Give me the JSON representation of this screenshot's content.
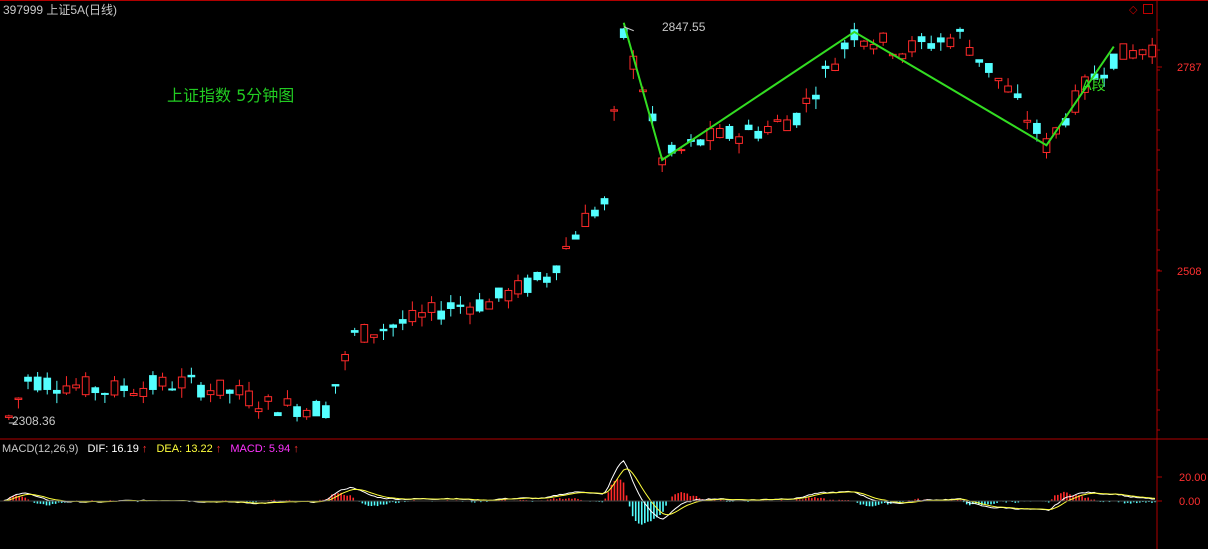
{
  "header": {
    "symbol_title": "397999 上证5A(日线)",
    "diamond_icon": "diamond-icon",
    "restore_icon": "restore-window-icon"
  },
  "annotation": {
    "chart_title": "上证指数 5分钟图",
    "high_label": "2847.55",
    "low_label": "2308.36",
    "segment_label": "A段"
  },
  "macd_legend": {
    "name": "MACD(12,26,9)",
    "dif": "DIF: 16.19",
    "dea": "DEA: 13.22",
    "macd": "MACD: 5.94",
    "arrow": "↑"
  },
  "colors": {
    "background": "#000000",
    "axis": "#b00000",
    "up_candle": "#ff2a2a",
    "down_candle": "#54ffff",
    "zigzag": "#33dd22",
    "dif_line": "#ffffff",
    "dea_line": "#ffff3c",
    "title_green": "#22cc22",
    "macd_magenta": "#ff33ff"
  },
  "chart_data": [
    {
      "type": "candlestick",
      "price_axis_ticks": [
        2787,
        2508
      ],
      "extremes": {
        "high": 2847.55,
        "low": 2308.36
      },
      "zigzag_points": [
        {
          "bar": 64,
          "price": 2847.55
        },
        {
          "bar": 68,
          "price": 2660
        },
        {
          "bar": 88,
          "price": 2835
        },
        {
          "bar": 108,
          "price": 2680
        },
        {
          "bar": 115,
          "price": 2815
        }
      ],
      "grid": false
    },
    {
      "type": "bar",
      "indicator": "MACD(12,26,9)",
      "macd_axis_ticks": [
        20.0,
        0.0
      ],
      "latest": {
        "DIF": 16.19,
        "DEA": 13.22,
        "MACD": 5.94
      }
    }
  ]
}
